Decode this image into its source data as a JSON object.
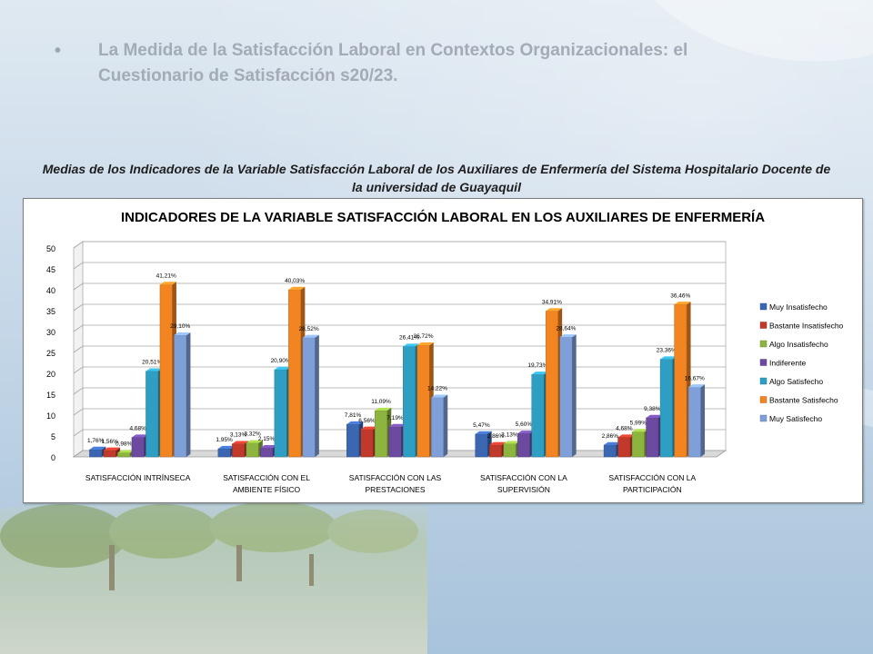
{
  "slide": {
    "bullet": "•",
    "title": "La Medida de la Satisfacción Laboral en Contextos     Organizacionales: el Cuestionario de Satisfacción s20/23.",
    "subtitle": "Medias de los Indicadores de la Variable Satisfacción Laboral de los Auxiliares de Enfermería del Sistema Hospitalario Docente de la universidad de Guayaquil"
  },
  "chart_data": {
    "type": "bar",
    "title": "INDICADORES DE LA VARIABLE SATISFACCIÓN LABORAL EN LOS AUXILIARES DE ENFERMERÍA",
    "categories": [
      [
        "SATISFACCIÓN INTRÍNSECA"
      ],
      [
        "SATISFACCIÓN CON EL",
        "AMBIENTE FÍSICO"
      ],
      [
        "SATISFACCIÓN CON LAS",
        "PRESTACIONES"
      ],
      [
        "SATISFACCIÓN CON LA",
        "SUPERVISIÓN"
      ],
      [
        "SATISFACCIÓN CON LA",
        "PARTICIPACIÓN"
      ]
    ],
    "ylim": [
      0,
      50
    ],
    "yticks": [
      0,
      5,
      10,
      15,
      20,
      25,
      30,
      35,
      40,
      45,
      50
    ],
    "grid": true,
    "legend_position": "right",
    "series": [
      {
        "name": "Muy Insatisfecho",
        "color": "#3a66b2",
        "values": [
          1.76,
          1.95,
          7.81,
          5.47,
          2.86
        ],
        "labels": [
          "1,76%",
          "1,95%",
          "7,81%",
          "5,47%",
          "2,86%"
        ]
      },
      {
        "name": "Bastante Insatisfecho",
        "color": "#c0392b",
        "values": [
          1.56,
          3.13,
          6.56,
          2.86,
          4.68
        ],
        "labels": [
          "1,56%",
          "3,13%",
          "6,56%",
          "2,86%",
          "4,68%"
        ]
      },
      {
        "name": "Algo Insatisfecho",
        "color": "#8db43e",
        "values": [
          0.98,
          3.32,
          11.09,
          3.13,
          5.99
        ],
        "labels": [
          "0,98%",
          "3,32%",
          "11,09%",
          "3,13%",
          "5,99%"
        ]
      },
      {
        "name": "Indiferente",
        "color": "#6b4aa0",
        "values": [
          4.68,
          2.15,
          7.19,
          5.6,
          9.38
        ],
        "labels": [
          "4,68%",
          "2,15%",
          "7,19%",
          "5,60%",
          "9,38%"
        ]
      },
      {
        "name": "Algo Satisfecho",
        "color": "#2e9fc2",
        "values": [
          20.51,
          20.9,
          26.41,
          19.73,
          23.36
        ],
        "labels": [
          "20,51%",
          "20,90%",
          "26,41%",
          "19,73%",
          "23,36%"
        ]
      },
      {
        "name": "Bastante Satisfecho",
        "color": "#f28522",
        "values": [
          41.21,
          40.03,
          26.72,
          34.91,
          36.46
        ],
        "labels": [
          "41,21%",
          "40,03%",
          "26,72%",
          "34,91%",
          "36,46%"
        ]
      },
      {
        "name": "Muy Satisfecho",
        "color": "#7f9fd8",
        "values": [
          29.1,
          28.52,
          14.22,
          28.64,
          16.67
        ],
        "labels": [
          "29,10%",
          "28,52%",
          "14,22%",
          "28,64%",
          "16,67%"
        ]
      }
    ]
  }
}
